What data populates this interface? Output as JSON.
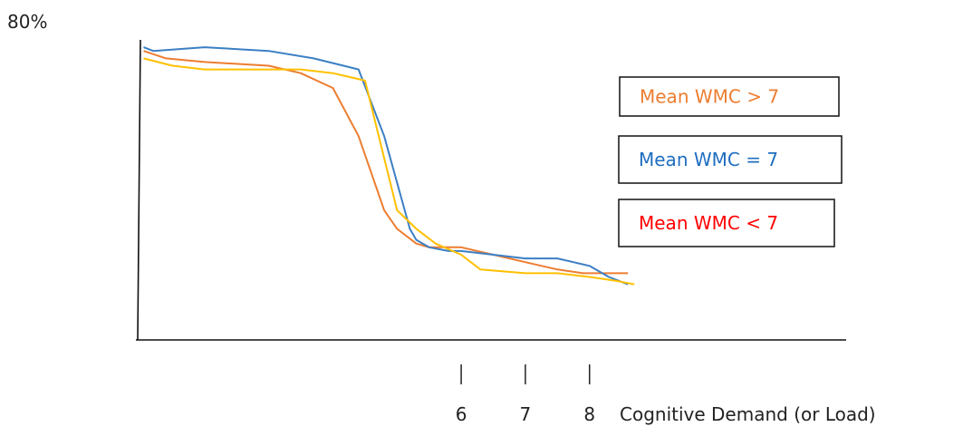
{
  "chart_data": {
    "type": "line",
    "y_top_label": "80%",
    "xlabel": "Cognitive Demand (or Load)",
    "x_ticks": [
      {
        "value": 6,
        "label": "6"
      },
      {
        "value": 7,
        "label": "7"
      },
      {
        "value": 8,
        "label": "8"
      }
    ],
    "xlim": [
      1.0,
      12.0
    ],
    "ylim": [
      0,
      80
    ],
    "series": [
      {
        "name": "Mean WMC > 7",
        "color": "#ed7d31",
        "x": [
          1.05,
          1.4,
          2,
          3,
          3.5,
          4,
          4.4,
          4.8,
          5,
          5.3,
          5.5,
          6,
          6.5,
          7,
          7.5,
          7.9,
          8.2,
          8.6
        ],
        "y": [
          78,
          76,
          75,
          74,
          72,
          68,
          55,
          35,
          30,
          26,
          25,
          25,
          23,
          21,
          19,
          18,
          18,
          18
        ]
      },
      {
        "name": "Mean WMC = 7",
        "color": "#3c7fc4",
        "x": [
          1.05,
          1.2,
          2,
          3,
          3.7,
          4.4,
          4.8,
          5.2,
          5.3,
          5.5,
          5.8,
          6,
          6.5,
          7,
          7.5,
          8,
          8.3,
          8.6
        ],
        "y": [
          79,
          78,
          79,
          78,
          76,
          73,
          55,
          30,
          27,
          25,
          24,
          24,
          23,
          22,
          22,
          20,
          17,
          15
        ]
      },
      {
        "name": "Mean WMC < 7",
        "color": "#ff0000",
        "x": [],
        "y": []
      },
      {
        "name": "",
        "color": "#ffc000",
        "x": [
          1.05,
          1.5,
          2,
          2.5,
          3,
          3.5,
          4,
          4.5,
          5,
          5.3,
          5.6,
          6,
          6.3,
          7,
          7.5,
          8,
          8.4,
          8.7
        ],
        "y": [
          76,
          74,
          73,
          73,
          73,
          73,
          72,
          70,
          35,
          30,
          26,
          23,
          19,
          18,
          18,
          17,
          16,
          15
        ]
      }
    ]
  },
  "legend": [
    {
      "label": "Mean WMC > 7",
      "color": "#ed7d31"
    },
    {
      "label": "Mean WMC = 7",
      "color": "#1f6ebf"
    },
    {
      "label": "Mean WMC < 7",
      "color": "#ff0000"
    }
  ]
}
